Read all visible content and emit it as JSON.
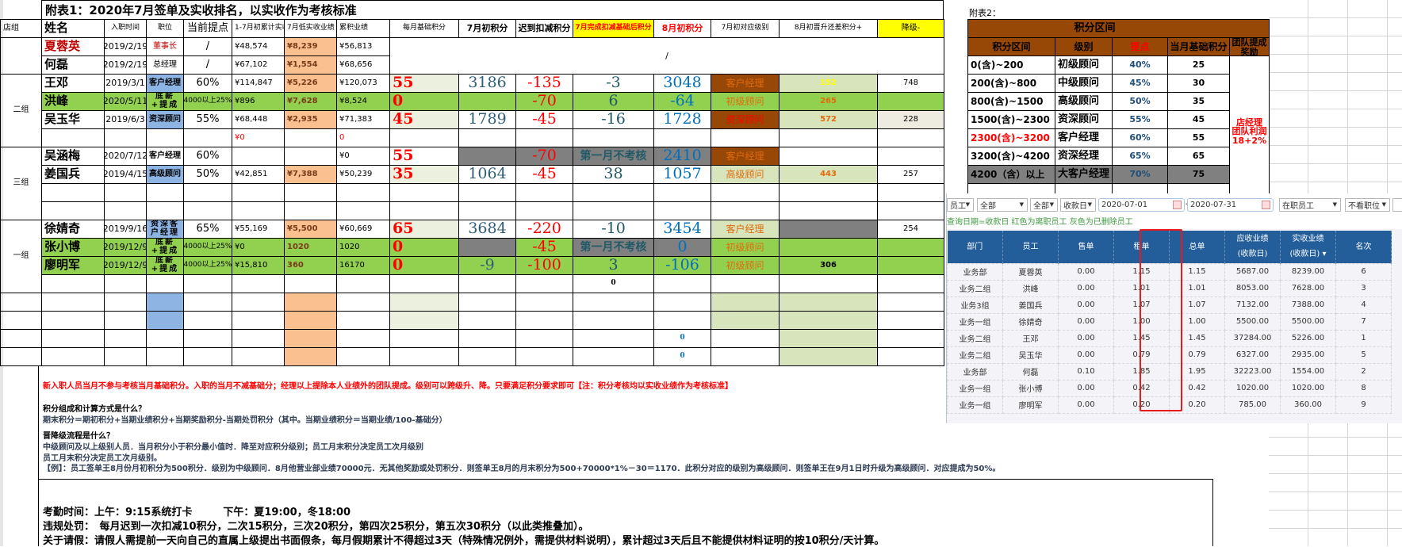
{
  "sheet": {
    "title": "附表1：2020年7月签单及实收排名，以实收作为考核标准",
    "group_header": "店组",
    "headers": [
      "姓名",
      "入职时间",
      "职位",
      "当前提点",
      "1-7月初累计实收",
      "7月低实收业绩",
      "累积业绩",
      "每月基础积分",
      "7月初积分",
      "迟到扣减积分",
      "7月完成扣减基础后积分",
      "8月初积分",
      "7月初对应级别",
      "8月初晋升还差积分+",
      "降级-"
    ],
    "top_merged_value": "/",
    "groups": [
      {
        "label": "二组"
      },
      {
        "label": "三组"
      },
      {
        "label": "一组"
      }
    ],
    "rows": [
      [
        "夏蓉英",
        "2019/2/19",
        "董事长",
        "/",
        "¥48,574",
        "¥8,239",
        "¥56,813",
        "",
        "",
        "",
        "",
        "",
        "",
        "",
        ""
      ],
      [
        "何磊",
        "2019/2/19",
        "总经理",
        "/",
        "¥67,102",
        "¥1,554",
        "¥68,656",
        "",
        "",
        "",
        "",
        "",
        "",
        "",
        ""
      ],
      [
        "王邓",
        "2019/3/1",
        "客户经理",
        "60%",
        "¥114,847",
        "¥5,226",
        "¥120,073",
        "55",
        "3186",
        "-135",
        "-3",
        "3048",
        "客户经理",
        "152",
        "748"
      ],
      [
        "洪峰",
        "2020/5/11",
        "底薪+提成",
        "4000以上25%",
        "¥896",
        "¥7,628",
        "¥8,524",
        "0",
        "",
        "-70",
        "6",
        "-64",
        "初级顾问",
        "265",
        ""
      ],
      [
        "吴玉华",
        "2019/6/3",
        "资深顾问",
        "55%",
        "¥68,448",
        "¥2,935",
        "¥71,383",
        "45",
        "1789",
        "-45",
        "-16",
        "1728",
        "资深顾问",
        "572",
        "228"
      ],
      [
        "",
        "",
        "",
        "",
        "¥0",
        "",
        "0",
        "",
        "",
        "",
        "",
        "",
        "",
        "",
        ""
      ],
      [
        "吴涵梅",
        "2020/7/12",
        "客户经理",
        "60%",
        "",
        "",
        "¥0",
        "55",
        "",
        "-70",
        "第一月不考核",
        "2410",
        "客户经理",
        "",
        ""
      ],
      [
        "姜国兵",
        "2019/4/15",
        "高级顾问",
        "50%",
        "¥42,851",
        "¥7,388",
        "¥50,239",
        "35",
        "1064",
        "-45",
        "38",
        "1057",
        "高级顾问",
        "443",
        "257"
      ],
      [
        "",
        "",
        "",
        "",
        "",
        "",
        "",
        "",
        "",
        "",
        "",
        "",
        "",
        "",
        ""
      ],
      [
        "",
        "",
        "",
        "",
        "",
        "",
        "",
        "",
        "",
        "",
        "",
        "",
        "",
        "",
        ""
      ],
      [
        "徐婧奇",
        "2019/9/16",
        "资深客户经理",
        "65%",
        "¥55,169",
        "¥5,500",
        "¥60,669",
        "65",
        "3684",
        "-220",
        "-10",
        "3454",
        "客户经理",
        "",
        "254"
      ],
      [
        "张小博",
        "2019/12/9",
        "底薪+提成",
        "4000以上25%",
        "¥0",
        "1020",
        "1020",
        "0",
        "",
        "-45",
        "第一月不考核",
        "0",
        "初级顾问",
        "",
        ""
      ],
      [
        "廖明军",
        "2019/12/9",
        "底薪+提成",
        "4000以上25%",
        "¥15,810",
        "360",
        "16170",
        "0",
        "-9",
        "-100",
        "3",
        "-106",
        "初级顾问",
        "306",
        ""
      ],
      [
        "",
        "",
        "",
        "",
        "",
        "",
        "",
        "",
        "",
        "",
        "0",
        "",
        "",
        "",
        ""
      ],
      [
        "",
        "",
        "",
        "",
        "",
        "",
        "",
        "",
        "",
        "",
        "",
        "",
        "",
        "",
        ""
      ],
      [
        "",
        "",
        "",
        "",
        "",
        "",
        "",
        "",
        "",
        "",
        "",
        "",
        "",
        "",
        ""
      ],
      [
        "",
        "",
        "",
        "",
        "",
        "",
        "",
        "",
        "",
        "",
        "",
        "0",
        "",
        "",
        ""
      ],
      [
        "",
        "",
        "",
        "",
        "",
        "",
        "",
        "",
        "",
        "",
        "",
        "0",
        "",
        "",
        ""
      ]
    ]
  },
  "colors": {
    "green_row": "#92d050",
    "position_blue": "#8db4e2",
    "actual_orange": "#fac090",
    "base_light": "#ebf1de",
    "level_brown": "#974706",
    "level_light": "#d8e4bc",
    "gray": "#808080",
    "yellow": "#ffff00",
    "panel_header": "#235d9a",
    "highlight_red": "#e41c1c"
  },
  "table2": {
    "title": "附表2：",
    "banner": "积分区间",
    "headers": [
      "积分区间",
      "级别",
      "提点",
      "当月基础积分",
      "团队提成奖励"
    ],
    "rows": [
      [
        "0(含)~200",
        "初级顾问",
        "40%",
        "25"
      ],
      [
        "200(含)~800",
        "中级顾问",
        "45%",
        "30"
      ],
      [
        "800(含)~1500",
        "高级顾问",
        "50%",
        "35"
      ],
      [
        "1500(含)~2300",
        "资深顾问",
        "55%",
        "45"
      ],
      [
        "2300(含)~3200",
        "客户经理",
        "60%",
        "55"
      ],
      [
        "3200(含)~4200",
        "资深经理",
        "65%",
        "65"
      ],
      [
        "4200（含）以上",
        "大客户经理",
        "70%",
        "75"
      ]
    ],
    "team_bonus": [
      "店经理",
      "团队利润",
      "18+2%"
    ]
  },
  "notes": {
    "red_line": "新入职人员当月不参与考核当月基础积分。入职的当月不减基础分；经理以上提除本人业绩外的团队提成。级别可以跨级升、降。只要满足积分要求即可【注：积分考核均以实收业绩作为考核标准】",
    "q1": "积分组成和计算方式是什么？",
    "a1": "期末积分＝期初积分+当期业绩积分+当期奖励积分-当期处罚积分（其中。当期业绩积分＝当期业绩/100-基础分）",
    "q2": "晋降级流程是什么？",
    "a2_1": "中级顾问及以上级别人员．当月积分小于积分最小值时．降至对应积分级别；员工月末积分决定员工次月级别",
    "a2_2": "员工月末积分决定员工次月级别。",
    "example": "【例】：员工签单王8月份月初积分为500积分．级别为中级顾问．8月他营业部业绩70000元．无其他奖励或处罚积分．则签单王8月的月末积分为500+70000*1%－30＝1170．此积分对应的级别为高级顾问．则签单王在9月1日时升级为高级顾问．对应提成为50%。"
  },
  "rules": {
    "attendance": "考勤时间：上午：9:15系统打卡　　　下午：夏19:00，冬18:00",
    "penalty": "违规处罚：　每月迟到一次扣减10积分，二次15积分，三次20积分，第四次25积分，第五次30积分（以此类推叠加）。",
    "leave": "关于请假：请假人需提前一天向自己的直属上级提出书面假条，每月假期累计不得超过3天（特殊情况例外，需提供材料说明），累计超过3天后且不能提供材料证明的按10积分/天计算。"
  },
  "panel": {
    "filters": {
      "type": "员工",
      "scope1": "全部",
      "scope2": "全部",
      "date_type": "收款日",
      "date_from": "2020-07-01",
      "date_sep": "--",
      "date_to": "2020-07-31",
      "status": "在职员工",
      "position": "不看职位"
    },
    "hint": "查询日期=收款日 红色为离职员工 灰色为已删除员工",
    "columns": [
      "部门",
      "员工",
      "售单",
      "租单",
      "总单",
      "应收业绩\n(收款日)",
      "实收业绩\n(收款日)",
      "名次"
    ],
    "sorted_column": "实收业绩",
    "rows": [
      [
        "业务部",
        "夏蓉英",
        "0.00",
        "1.15",
        "1.15",
        "5687.00",
        "8239.00",
        "6"
      ],
      [
        "业务二组",
        "洪峰",
        "0.00",
        "1.01",
        "1.01",
        "8053.00",
        "7628.00",
        "3"
      ],
      [
        "业务3组",
        "姜国兵",
        "0.00",
        "1.07",
        "1.07",
        "7132.00",
        "7388.00",
        "4"
      ],
      [
        "业务一组",
        "徐婧奇",
        "0.00",
        "1.00",
        "1.00",
        "5500.00",
        "5500.00",
        "7"
      ],
      [
        "业务二组",
        "王邓",
        "0.00",
        "1.45",
        "1.45",
        "37284.00",
        "5226.00",
        "1"
      ],
      [
        "业务二组",
        "吴玉华",
        "0.00",
        "0.79",
        "0.79",
        "6327.00",
        "2935.00",
        "5"
      ],
      [
        "业务部",
        "何磊",
        "0.10",
        "1.85",
        "1.95",
        "32223.00",
        "1554.00",
        "2"
      ],
      [
        "业务一组",
        "张小博",
        "0.00",
        "0.42",
        "0.42",
        "1020.00",
        "1020.00",
        "8"
      ],
      [
        "业务一组",
        "廖明军",
        "0.00",
        "0.20",
        "0.20",
        "785.00",
        "360.00",
        "9"
      ]
    ]
  }
}
